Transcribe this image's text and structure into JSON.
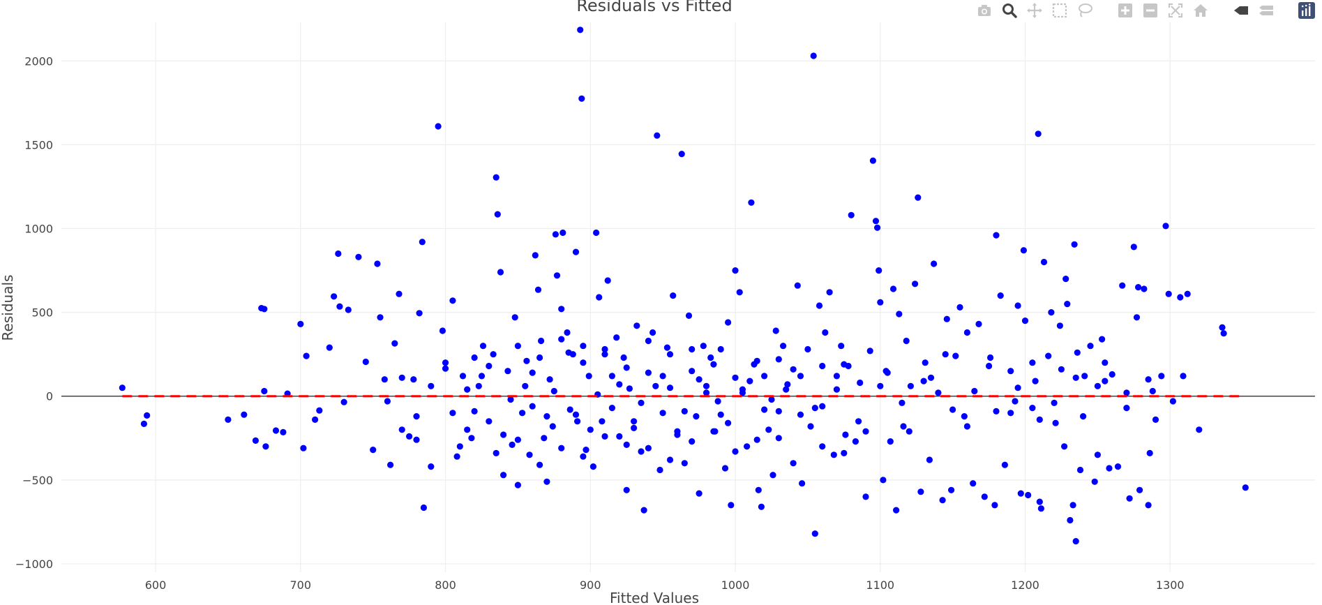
{
  "chart_data": {
    "type": "scatter",
    "title": "Residuals vs Fitted",
    "xlabel": "Fitted Values",
    "ylabel": "Residuals",
    "xlim": [
      535,
      1400
    ],
    "ylim": [
      -1050,
      2230
    ],
    "xticks": [
      600,
      700,
      800,
      900,
      1000,
      1100,
      1200,
      1300
    ],
    "yticks": [
      -1000,
      -500,
      0,
      500,
      1000,
      1500,
      2000
    ],
    "grid": true,
    "marker_color": "#0000ff",
    "reference_line": {
      "y": 0,
      "color": "#ff0000",
      "style": "dashed",
      "x_range": [
        577,
        1352
      ]
    },
    "zero_line_color": "#444444",
    "points": [
      [
        577,
        50
      ],
      [
        592,
        -165
      ],
      [
        594,
        -115
      ],
      [
        650,
        -140
      ],
      [
        661,
        -110
      ],
      [
        669,
        -265
      ],
      [
        673,
        525
      ],
      [
        675,
        520
      ],
      [
        675,
        30
      ],
      [
        676,
        -300
      ],
      [
        683,
        -205
      ],
      [
        688,
        -215
      ],
      [
        691,
        15
      ],
      [
        700,
        430
      ],
      [
        702,
        -310
      ],
      [
        704,
        240
      ],
      [
        710,
        -140
      ],
      [
        713,
        -85
      ],
      [
        720,
        290
      ],
      [
        723,
        595
      ],
      [
        726,
        850
      ],
      [
        727,
        535
      ],
      [
        730,
        -35
      ],
      [
        733,
        515
      ],
      [
        740,
        830
      ],
      [
        745,
        205
      ],
      [
        750,
        -320
      ],
      [
        753,
        790
      ],
      [
        755,
        470
      ],
      [
        758,
        100
      ],
      [
        762,
        -410
      ],
      [
        765,
        315
      ],
      [
        768,
        610
      ],
      [
        770,
        -200
      ],
      [
        775,
        -240
      ],
      [
        778,
        100
      ],
      [
        780,
        -260
      ],
      [
        782,
        495
      ],
      [
        784,
        920
      ],
      [
        785,
        -665
      ],
      [
        790,
        -420
      ],
      [
        795,
        1610
      ],
      [
        798,
        390
      ],
      [
        800,
        165
      ],
      [
        805,
        570
      ],
      [
        808,
        -360
      ],
      [
        812,
        120
      ],
      [
        815,
        40
      ],
      [
        818,
        -250
      ],
      [
        820,
        -90
      ],
      [
        823,
        60
      ],
      [
        826,
        300
      ],
      [
        830,
        -150
      ],
      [
        833,
        250
      ],
      [
        835,
        1305
      ],
      [
        836,
        1085
      ],
      [
        838,
        740
      ],
      [
        840,
        -470
      ],
      [
        843,
        150
      ],
      [
        846,
        -290
      ],
      [
        848,
        470
      ],
      [
        850,
        -530
      ],
      [
        853,
        -100
      ],
      [
        856,
        210
      ],
      [
        858,
        -350
      ],
      [
        860,
        140
      ],
      [
        862,
        840
      ],
      [
        864,
        635
      ],
      [
        866,
        330
      ],
      [
        868,
        -250
      ],
      [
        870,
        -510
      ],
      [
        872,
        100
      ],
      [
        874,
        -180
      ],
      [
        876,
        965
      ],
      [
        877,
        720
      ],
      [
        880,
        520
      ],
      [
        881,
        975
      ],
      [
        884,
        380
      ],
      [
        886,
        -80
      ],
      [
        888,
        250
      ],
      [
        890,
        860
      ],
      [
        891,
        -150
      ],
      [
        893,
        2185
      ],
      [
        894,
        1775
      ],
      [
        895,
        300
      ],
      [
        897,
        -320
      ],
      [
        899,
        120
      ],
      [
        902,
        -420
      ],
      [
        904,
        975
      ],
      [
        906,
        590
      ],
      [
        908,
        -150
      ],
      [
        910,
        280
      ],
      [
        912,
        690
      ],
      [
        915,
        -70
      ],
      [
        918,
        350
      ],
      [
        920,
        -240
      ],
      [
        923,
        230
      ],
      [
        925,
        -560
      ],
      [
        927,
        45
      ],
      [
        930,
        -190
      ],
      [
        932,
        420
      ],
      [
        935,
        -330
      ],
      [
        937,
        -680
      ],
      [
        940,
        140
      ],
      [
        943,
        380
      ],
      [
        946,
        1555
      ],
      [
        948,
        -440
      ],
      [
        950,
        -100
      ],
      [
        953,
        290
      ],
      [
        955,
        50
      ],
      [
        957,
        600
      ],
      [
        960,
        -230
      ],
      [
        963,
        1445
      ],
      [
        965,
        -400
      ],
      [
        968,
        480
      ],
      [
        970,
        150
      ],
      [
        973,
        -120
      ],
      [
        975,
        -580
      ],
      [
        978,
        300
      ],
      [
        980,
        60
      ],
      [
        983,
        230
      ],
      [
        986,
        -210
      ],
      [
        988,
        -30
      ],
      [
        990,
        280
      ],
      [
        993,
        -430
      ],
      [
        995,
        440
      ],
      [
        997,
        -650
      ],
      [
        1000,
        750
      ],
      [
        1003,
        620
      ],
      [
        1005,
        40
      ],
      [
        1008,
        -300
      ],
      [
        1011,
        1155
      ],
      [
        1013,
        190
      ],
      [
        1016,
        -560
      ],
      [
        1018,
        -660
      ],
      [
        1020,
        120
      ],
      [
        1023,
        -200
      ],
      [
        1026,
        -470
      ],
      [
        1028,
        390
      ],
      [
        1030,
        -90
      ],
      [
        1033,
        300
      ],
      [
        1036,
        70
      ],
      [
        1040,
        -400
      ],
      [
        1043,
        660
      ],
      [
        1046,
        -520
      ],
      [
        1050,
        280
      ],
      [
        1052,
        -180
      ],
      [
        1054,
        2030
      ],
      [
        1055,
        -820
      ],
      [
        1058,
        540
      ],
      [
        1060,
        -60
      ],
      [
        1062,
        380
      ],
      [
        1065,
        620
      ],
      [
        1068,
        -350
      ],
      [
        1070,
        120
      ],
      [
        1073,
        300
      ],
      [
        1076,
        -230
      ],
      [
        1078,
        180
      ],
      [
        1080,
        1080
      ],
      [
        1083,
        -270
      ],
      [
        1086,
        80
      ],
      [
        1090,
        -600
      ],
      [
        1093,
        270
      ],
      [
        1095,
        1405
      ],
      [
        1097,
        1045
      ],
      [
        1098,
        1005
      ],
      [
        1099,
        750
      ],
      [
        1100,
        560
      ],
      [
        1102,
        -500
      ],
      [
        1104,
        150
      ],
      [
        1107,
        -270
      ],
      [
        1109,
        640
      ],
      [
        1111,
        -680
      ],
      [
        1113,
        490
      ],
      [
        1116,
        -180
      ],
      [
        1118,
        330
      ],
      [
        1121,
        60
      ],
      [
        1124,
        670
      ],
      [
        1126,
        1185
      ],
      [
        1128,
        -570
      ],
      [
        1131,
        200
      ],
      [
        1134,
        -380
      ],
      [
        1137,
        790
      ],
      [
        1140,
        20
      ],
      [
        1143,
        -620
      ],
      [
        1146,
        460
      ],
      [
        1149,
        -560
      ],
      [
        1152,
        240
      ],
      [
        1155,
        530
      ],
      [
        1158,
        -120
      ],
      [
        1160,
        380
      ],
      [
        1164,
        -520
      ],
      [
        1168,
        430
      ],
      [
        1172,
        -600
      ],
      [
        1176,
        230
      ],
      [
        1179,
        -650
      ],
      [
        1180,
        960
      ],
      [
        1183,
        600
      ],
      [
        1186,
        -410
      ],
      [
        1190,
        150
      ],
      [
        1193,
        -30
      ],
      [
        1195,
        540
      ],
      [
        1197,
        -580
      ],
      [
        1199,
        870
      ],
      [
        1200,
        450
      ],
      [
        1202,
        -590
      ],
      [
        1205,
        -70
      ],
      [
        1207,
        90
      ],
      [
        1209,
        1565
      ],
      [
        1210,
        -630
      ],
      [
        1211,
        -670
      ],
      [
        1213,
        800
      ],
      [
        1216,
        240
      ],
      [
        1218,
        500
      ],
      [
        1221,
        -160
      ],
      [
        1224,
        420
      ],
      [
        1227,
        -300
      ],
      [
        1228,
        700
      ],
      [
        1229,
        550
      ],
      [
        1231,
        -740
      ],
      [
        1233,
        -650
      ],
      [
        1234,
        905
      ],
      [
        1235,
        -865
      ],
      [
        1236,
        260
      ],
      [
        1238,
        -440
      ],
      [
        1241,
        120
      ],
      [
        1245,
        300
      ],
      [
        1248,
        -510
      ],
      [
        1250,
        60
      ],
      [
        1253,
        340
      ],
      [
        1255,
        200
      ],
      [
        1258,
        -430
      ],
      [
        1260,
        130
      ],
      [
        1264,
        -420
      ],
      [
        1267,
        660
      ],
      [
        1270,
        20
      ],
      [
        1272,
        -610
      ],
      [
        1275,
        890
      ],
      [
        1277,
        470
      ],
      [
        1278,
        650
      ],
      [
        1279,
        -560
      ],
      [
        1282,
        640
      ],
      [
        1285,
        -650
      ],
      [
        1286,
        -340
      ],
      [
        1288,
        30
      ],
      [
        1290,
        -140
      ],
      [
        1294,
        120
      ],
      [
        1297,
        1015
      ],
      [
        1299,
        610
      ],
      [
        1302,
        -30
      ],
      [
        1307,
        590
      ],
      [
        1309,
        120
      ],
      [
        1312,
        610
      ],
      [
        1320,
        -200
      ],
      [
        1336,
        410
      ],
      [
        1337,
        375
      ],
      [
        1352,
        -545
      ],
      [
        845,
        -20
      ],
      [
        860,
        -60
      ],
      [
        875,
        30
      ],
      [
        890,
        -110
      ],
      [
        905,
        10
      ],
      [
        920,
        70
      ],
      [
        935,
        -40
      ],
      [
        950,
        120
      ],
      [
        965,
        -90
      ],
      [
        980,
        20
      ],
      [
        995,
        -160
      ],
      [
        1010,
        90
      ],
      [
        1025,
        -20
      ],
      [
        1040,
        160
      ],
      [
        1055,
        -70
      ],
      [
        1070,
        40
      ],
      [
        1085,
        -150
      ],
      [
        1100,
        60
      ],
      [
        1115,
        -40
      ],
      [
        1130,
        90
      ],
      [
        815,
        -200
      ],
      [
        830,
        180
      ],
      [
        850,
        -260
      ],
      [
        865,
        230
      ],
      [
        880,
        -310
      ],
      [
        895,
        200
      ],
      [
        910,
        -240
      ],
      [
        925,
        170
      ],
      [
        940,
        -310
      ],
      [
        955,
        250
      ],
      [
        970,
        -270
      ],
      [
        985,
        190
      ],
      [
        1000,
        -330
      ],
      [
        1015,
        210
      ],
      [
        1030,
        -250
      ],
      [
        1045,
        120
      ],
      [
        1060,
        -300
      ],
      [
        1075,
        190
      ],
      [
        1090,
        -210
      ],
      [
        1105,
        140
      ],
      [
        790,
        60
      ],
      [
        805,
        -100
      ],
      [
        820,
        230
      ],
      [
        835,
        -340
      ],
      [
        850,
        300
      ],
      [
        865,
        -410
      ],
      [
        880,
        340
      ],
      [
        895,
        -360
      ],
      [
        910,
        250
      ],
      [
        925,
        -290
      ],
      [
        940,
        330
      ],
      [
        955,
        -380
      ],
      [
        970,
        280
      ],
      [
        985,
        -210
      ],
      [
        1000,
        110
      ],
      [
        1015,
        -260
      ],
      [
        1030,
        220
      ],
      [
        1045,
        -110
      ],
      [
        1060,
        180
      ],
      [
        1075,
        -340
      ],
      [
        760,
        -30
      ],
      [
        770,
        110
      ],
      [
        780,
        -120
      ],
      [
        800,
        200
      ],
      [
        810,
        -300
      ],
      [
        825,
        120
      ],
      [
        840,
        -230
      ],
      [
        855,
        60
      ],
      [
        870,
        -120
      ],
      [
        885,
        260
      ],
      [
        900,
        -200
      ],
      [
        915,
        120
      ],
      [
        930,
        -150
      ],
      [
        945,
        60
      ],
      [
        960,
        -210
      ],
      [
        975,
        100
      ],
      [
        990,
        -110
      ],
      [
        1005,
        20
      ],
      [
        1020,
        -80
      ],
      [
        1035,
        40
      ],
      [
        1120,
        -210
      ],
      [
        1135,
        110
      ],
      [
        1150,
        -80
      ],
      [
        1165,
        30
      ],
      [
        1180,
        -90
      ],
      [
        1195,
        50
      ],
      [
        1210,
        -140
      ],
      [
        1225,
        160
      ],
      [
        1240,
        -120
      ],
      [
        1255,
        90
      ],
      [
        1270,
        -70
      ],
      [
        1285,
        100
      ],
      [
        1145,
        250
      ],
      [
        1160,
        -180
      ],
      [
        1175,
        180
      ],
      [
        1190,
        -100
      ],
      [
        1205,
        200
      ],
      [
        1220,
        -40
      ],
      [
        1235,
        110
      ],
      [
        1250,
        -350
      ]
    ]
  },
  "modebar": {
    "buttons": [
      "camera-icon",
      "zoom-icon",
      "pan-icon",
      "box-select-icon",
      "lasso-select-icon",
      "zoom-in-icon",
      "zoom-out-icon",
      "autoscale-icon",
      "reset-axes-icon",
      "spike-lines-icon",
      "hover-closest-icon",
      "hover-compare-icon",
      "plotly-logo-icon"
    ]
  }
}
